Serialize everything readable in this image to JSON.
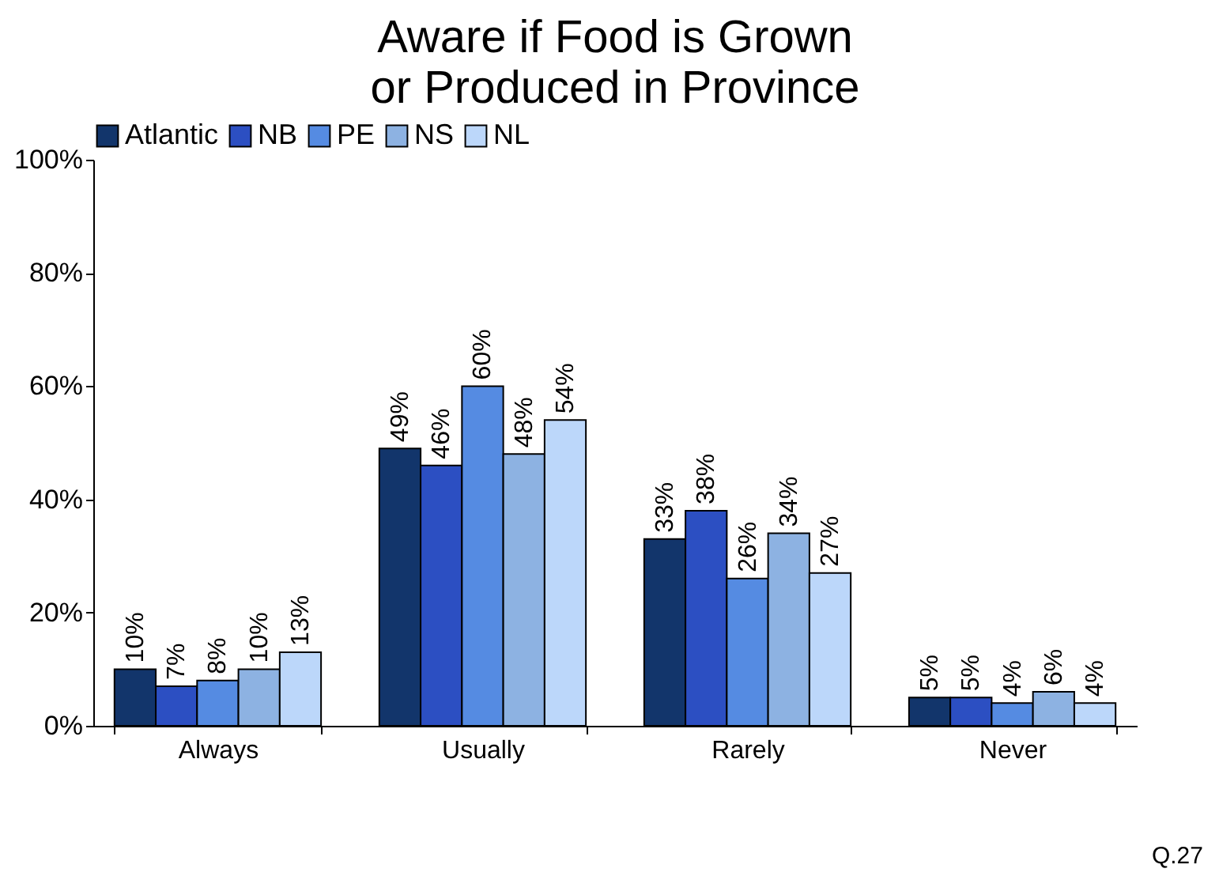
{
  "chart_data": {
    "type": "bar",
    "title": "Aware if Food is Grown or Produced in Province",
    "categories": [
      "Always",
      "Usually",
      "Rarely",
      "Never"
    ],
    "series": [
      {
        "name": "Atlantic",
        "color": "#12356b",
        "values": [
          10,
          49,
          33,
          5
        ]
      },
      {
        "name": "NB",
        "color": "#2c4fc2",
        "values": [
          7,
          46,
          38,
          5
        ]
      },
      {
        "name": "PE",
        "color": "#558be2",
        "values": [
          8,
          60,
          26,
          4
        ]
      },
      {
        "name": "NS",
        "color": "#8db2e2",
        "values": [
          10,
          48,
          34,
          6
        ]
      },
      {
        "name": "NL",
        "color": "#bcd7fa",
        "values": [
          13,
          54,
          27,
          4
        ]
      }
    ],
    "ylim": [
      0,
      100
    ],
    "yticks": [
      {
        "value": 0,
        "label": "0%"
      },
      {
        "value": 20,
        "label": "20%"
      },
      {
        "value": 40,
        "label": "40%"
      },
      {
        "value": 60,
        "label": "60%"
      },
      {
        "value": 80,
        "label": "80%"
      },
      {
        "value": 100,
        "label": "100%"
      }
    ],
    "value_labels": [
      [
        "10%",
        "49%",
        "33%",
        "5%"
      ],
      [
        "7%",
        "46%",
        "38%",
        "5%"
      ],
      [
        "8%",
        "60%",
        "26%",
        "4%"
      ],
      [
        "10%",
        "48%",
        "34%",
        "6%"
      ],
      [
        "13%",
        "54%",
        "27%",
        "4%"
      ]
    ],
    "grid": false,
    "legend": "top",
    "annotations": [
      "Q.27"
    ]
  }
}
